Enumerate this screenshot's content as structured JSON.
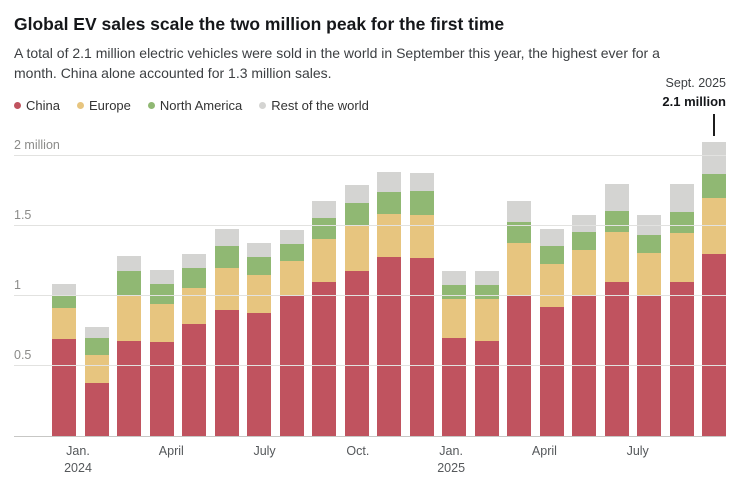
{
  "header": {
    "title": "Global EV sales scale the two million peak for the first time",
    "subtitle": "A total of 2.1 million electric vehicles were sold in the world in September this year, the highest ever for a month. China alone accounted for 1.3 million sales."
  },
  "annotation": {
    "line1": "Sept. 2025",
    "line2": "2.1 million"
  },
  "chart_data": {
    "type": "bar",
    "stacked": true,
    "grid": true,
    "legend_position": "top-left",
    "unit": "million vehicles per month",
    "categories": [
      "Jan. 2024",
      "Feb. 2024",
      "Mar. 2024",
      "Apr. 2024",
      "May 2024",
      "Jun. 2024",
      "Jul. 2024",
      "Aug. 2024",
      "Sep. 2024",
      "Oct. 2024",
      "Nov. 2024",
      "Dec. 2024",
      "Jan. 2025",
      "Feb. 2025",
      "Mar. 2025",
      "Apr. 2025",
      "May 2025",
      "Jun. 2025",
      "Jul. 2025",
      "Aug. 2025",
      "Sep. 2025"
    ],
    "series": [
      {
        "name": "China",
        "color": "#c0535f",
        "values": [
          0.69,
          0.38,
          0.68,
          0.67,
          0.8,
          0.9,
          0.88,
          1.0,
          1.1,
          1.18,
          1.28,
          1.27,
          0.7,
          0.68,
          1.0,
          0.92,
          1.0,
          1.1,
          1.0,
          1.1,
          1.3
        ]
      },
      {
        "name": "Europe",
        "color": "#e7c57f",
        "values": [
          0.22,
          0.2,
          0.33,
          0.27,
          0.26,
          0.3,
          0.27,
          0.25,
          0.31,
          0.33,
          0.31,
          0.31,
          0.28,
          0.3,
          0.38,
          0.31,
          0.33,
          0.36,
          0.31,
          0.35,
          0.4
        ]
      },
      {
        "name": "North America",
        "color": "#90b873",
        "values": [
          0.09,
          0.12,
          0.17,
          0.14,
          0.14,
          0.16,
          0.13,
          0.12,
          0.15,
          0.16,
          0.16,
          0.17,
          0.1,
          0.1,
          0.15,
          0.13,
          0.13,
          0.15,
          0.13,
          0.15,
          0.17
        ]
      },
      {
        "name": "Rest of the world",
        "color": "#d4d4d2",
        "values": [
          0.08,
          0.08,
          0.11,
          0.1,
          0.1,
          0.12,
          0.1,
          0.1,
          0.12,
          0.13,
          0.14,
          0.13,
          0.1,
          0.1,
          0.15,
          0.12,
          0.12,
          0.19,
          0.14,
          0.2,
          0.23
        ]
      }
    ],
    "ylim": [
      0,
      2.1
    ],
    "yticks": [
      {
        "value": 0.5,
        "label": "0.5"
      },
      {
        "value": 1,
        "label": "1"
      },
      {
        "value": 1.5,
        "label": "1.5"
      },
      {
        "value": 2,
        "label": "2 million"
      }
    ],
    "xticks": [
      {
        "index": 0,
        "label": "Jan.",
        "sublabel": "2024"
      },
      {
        "index": 3,
        "label": "April"
      },
      {
        "index": 6,
        "label": "July"
      },
      {
        "index": 9,
        "label": "Oct."
      },
      {
        "index": 12,
        "label": "Jan.",
        "sublabel": "2025"
      },
      {
        "index": 15,
        "label": "April"
      },
      {
        "index": 18,
        "label": "July"
      }
    ]
  }
}
